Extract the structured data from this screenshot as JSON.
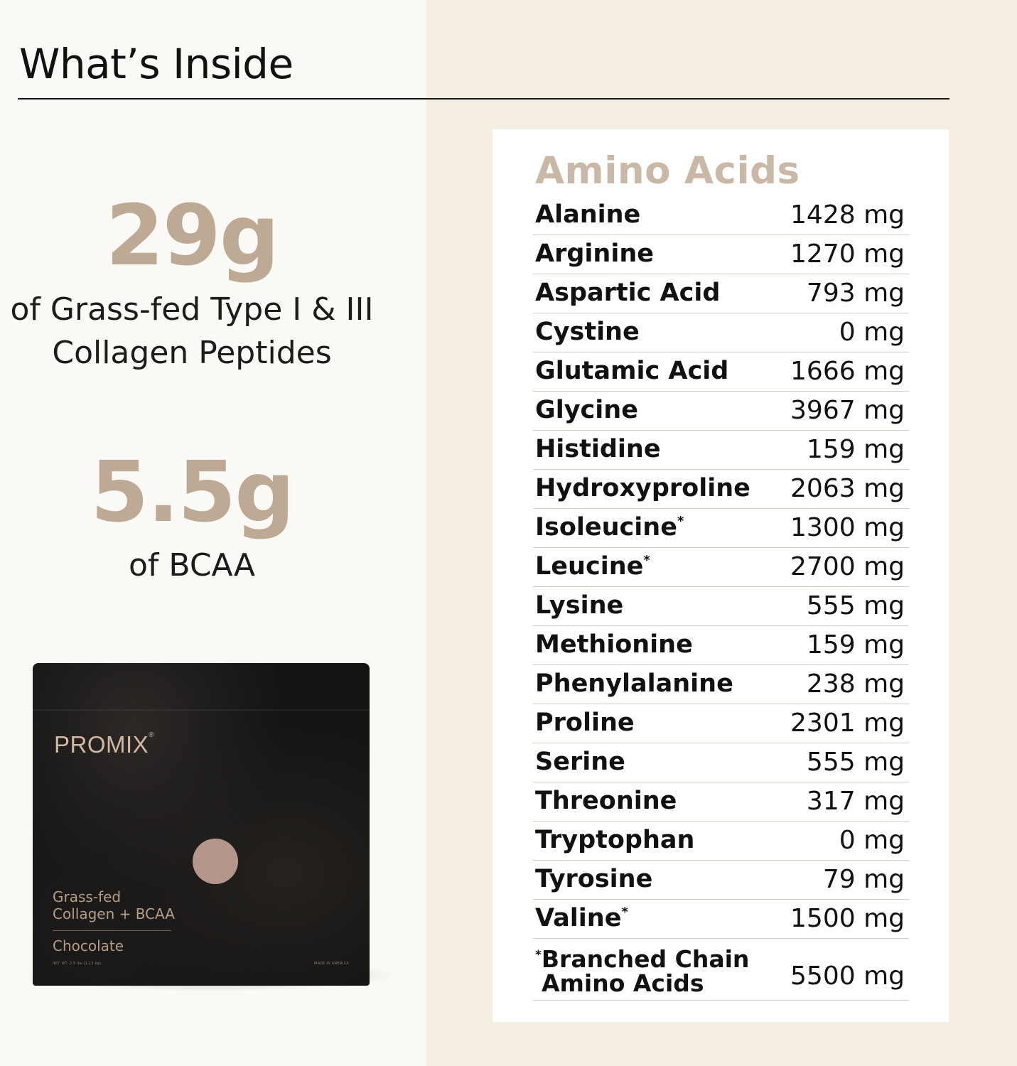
{
  "header": {
    "title": "What’s Inside"
  },
  "stats": [
    {
      "value": "29g",
      "label_line1": "of Grass-fed Type I & III",
      "label_line2": "Collagen Peptides"
    },
    {
      "value": "5.5g",
      "label_line1": "of BCAA"
    }
  ],
  "bag": {
    "brand": "PROMIX",
    "registered": "®",
    "product_line1": "Grass-fed",
    "product_line2": "Collagen + BCAA",
    "flavor": "Chocolate",
    "net_weight": "NET WT. 2.5 lbs (1.13 kg)",
    "origin": "MADE IN AMERICA"
  },
  "amino": {
    "title": "Amino Acids",
    "rows": [
      {
        "name": "Alanine",
        "mark": "",
        "amount": "1428 mg"
      },
      {
        "name": "Arginine",
        "mark": "",
        "amount": "1270 mg"
      },
      {
        "name": "Aspartic Acid",
        "mark": "",
        "amount": "793 mg"
      },
      {
        "name": "Cystine",
        "mark": "",
        "amount": "0 mg"
      },
      {
        "name": "Glutamic Acid",
        "mark": "",
        "amount": "1666 mg"
      },
      {
        "name": "Glycine",
        "mark": "",
        "amount": "3967 mg"
      },
      {
        "name": "Histidine",
        "mark": "",
        "amount": "159 mg"
      },
      {
        "name": "Hydroxyproline",
        "mark": "",
        "amount": "2063 mg"
      },
      {
        "name": "Isoleucine",
        "mark": "*",
        "amount": "1300 mg"
      },
      {
        "name": "Leucine",
        "mark": "*",
        "amount": "2700 mg"
      },
      {
        "name": "Lysine",
        "mark": "",
        "amount": "555 mg"
      },
      {
        "name": "Methionine",
        "mark": "",
        "amount": "159 mg"
      },
      {
        "name": "Phenylalanine",
        "mark": "",
        "amount": "238 mg"
      },
      {
        "name": "Proline",
        "mark": "",
        "amount": "2301 mg"
      },
      {
        "name": "Serine",
        "mark": "",
        "amount": "555 mg"
      },
      {
        "name": "Threonine",
        "mark": "",
        "amount": "317 mg"
      },
      {
        "name": "Tryptophan",
        "mark": "",
        "amount": "0 mg"
      },
      {
        "name": "Tyrosine",
        "mark": "",
        "amount": "79 mg"
      },
      {
        "name": "Valine",
        "mark": "*",
        "amount": "1500 mg"
      }
    ],
    "total": {
      "mark": "*",
      "name_line1": "Branched Chain",
      "name_line2": "Amino Acids",
      "amount": "5500 mg"
    }
  }
}
